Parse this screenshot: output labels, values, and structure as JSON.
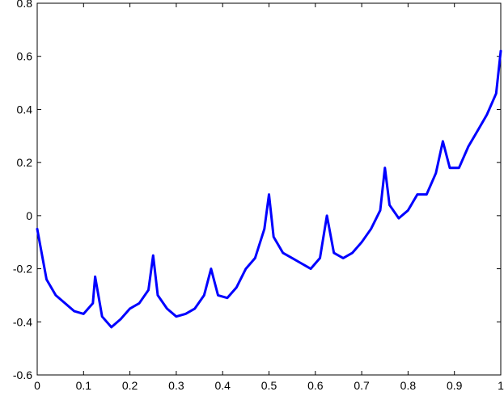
{
  "chart_data": {
    "type": "line",
    "title": "",
    "xlabel": "",
    "ylabel": "",
    "xlim": [
      0,
      1
    ],
    "ylim": [
      -0.6,
      0.8
    ],
    "grid": false,
    "legend": "none",
    "x_ticks": [
      "0",
      "0.1",
      "0.2",
      "0.3",
      "0.4",
      "0.5",
      "0.6",
      "0.7",
      "0.8",
      "0.9",
      "1"
    ],
    "x_tick_values": [
      0,
      0.1,
      0.2,
      0.3,
      0.4,
      0.5,
      0.6,
      0.7,
      0.8,
      0.9,
      1.0
    ],
    "y_ticks": [
      "0.8",
      "0.6",
      "0.4",
      "0.2",
      "0",
      "-0.2",
      "-0.4",
      "-0.6"
    ],
    "y_tick_values": [
      0.8,
      0.6,
      0.4,
      0.2,
      0.0,
      -0.2,
      -0.4,
      -0.6
    ],
    "series": [
      {
        "color": "#0000ff",
        "x": [
          0.0,
          0.02,
          0.04,
          0.06,
          0.08,
          0.1,
          0.12,
          0.125,
          0.14,
          0.16,
          0.18,
          0.2,
          0.22,
          0.24,
          0.25,
          0.26,
          0.28,
          0.3,
          0.32,
          0.34,
          0.36,
          0.375,
          0.39,
          0.41,
          0.43,
          0.45,
          0.47,
          0.49,
          0.5,
          0.51,
          0.53,
          0.55,
          0.57,
          0.59,
          0.61,
          0.625,
          0.64,
          0.66,
          0.68,
          0.7,
          0.72,
          0.74,
          0.75,
          0.76,
          0.78,
          0.8,
          0.82,
          0.84,
          0.86,
          0.875,
          0.89,
          0.91,
          0.93,
          0.95,
          0.97,
          0.99,
          1.0
        ],
        "y": [
          -0.05,
          -0.24,
          -0.3,
          -0.33,
          -0.36,
          -0.37,
          -0.33,
          -0.23,
          -0.38,
          -0.42,
          -0.39,
          -0.35,
          -0.33,
          -0.28,
          -0.15,
          -0.3,
          -0.35,
          -0.38,
          -0.37,
          -0.35,
          -0.3,
          -0.2,
          -0.3,
          -0.31,
          -0.27,
          -0.2,
          -0.16,
          -0.05,
          0.08,
          -0.08,
          -0.14,
          -0.16,
          -0.18,
          -0.2,
          -0.16,
          0.0,
          -0.14,
          -0.16,
          -0.14,
          -0.1,
          -0.05,
          0.02,
          0.18,
          0.04,
          -0.01,
          0.02,
          0.08,
          0.08,
          0.16,
          0.28,
          0.18,
          0.18,
          0.26,
          0.32,
          0.38,
          0.46,
          0.62
        ]
      }
    ]
  }
}
